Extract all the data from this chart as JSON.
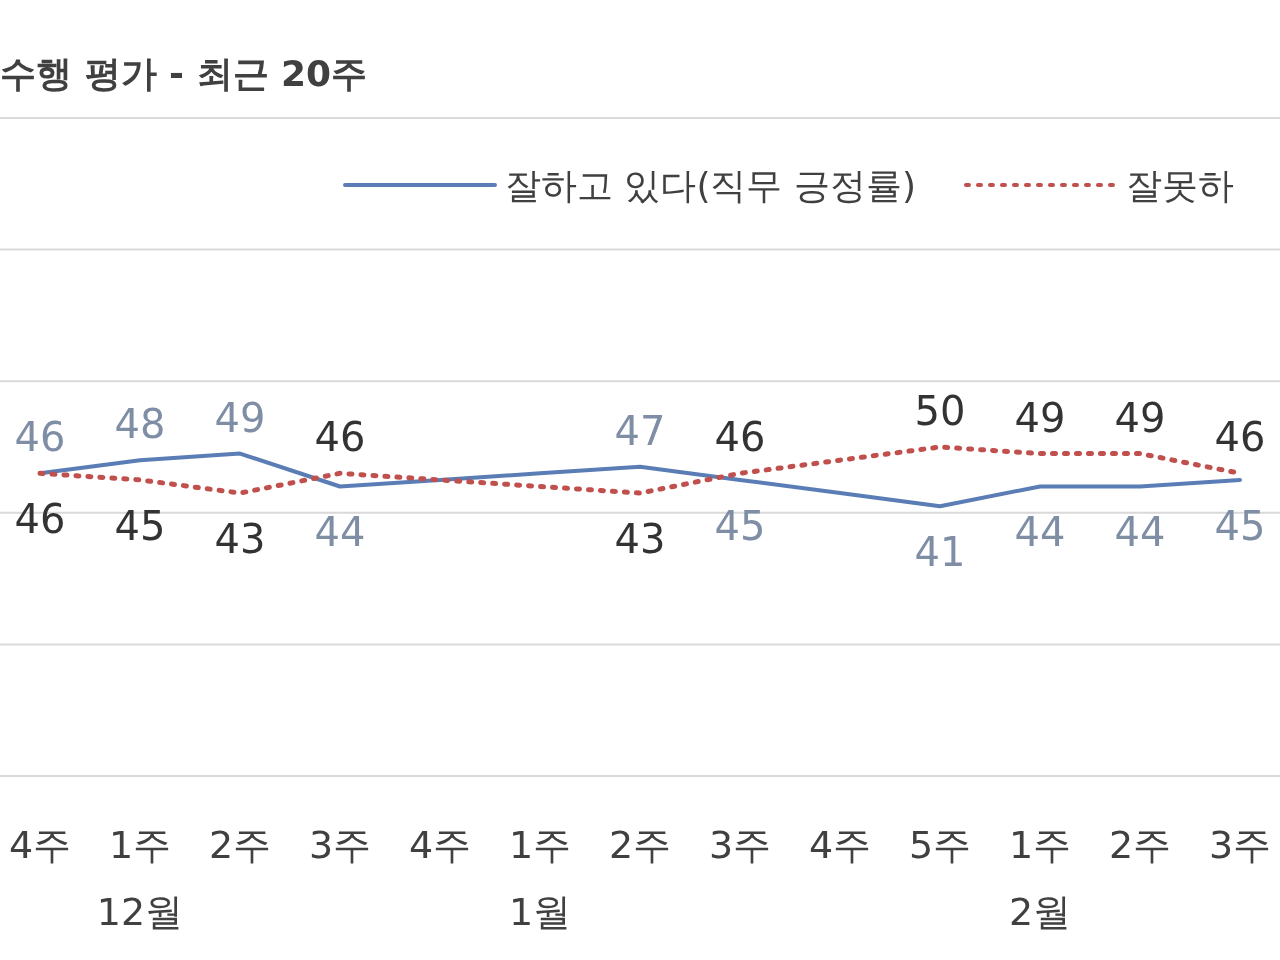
{
  "chart_data": {
    "type": "line",
    "title": "수행 평가 - 최근 20주",
    "categories": [
      "4주",
      "1주",
      "2주",
      "3주",
      "4주",
      "1주",
      "2주",
      "3주",
      "4주",
      "5주",
      "1주",
      "2주",
      "3주"
    ],
    "series": [
      {
        "name": "잘하고 있다(직무 긍정률)",
        "color": "#5b7db5",
        "line_style": "solid",
        "values": [
          46,
          48,
          49,
          44,
          45,
          46,
          47,
          45,
          43,
          41,
          44,
          44,
          45
        ],
        "value_labels": [
          "46",
          "48",
          "49",
          "44",
          null,
          null,
          "47",
          "45",
          null,
          "41",
          "44",
          "44",
          "45"
        ]
      },
      {
        "name": "잘못하",
        "color": "#c0504d",
        "line_style": "dotted",
        "values": [
          46,
          45,
          43,
          46,
          45,
          44,
          43,
          46,
          48,
          50,
          49,
          49,
          46
        ],
        "value_labels": [
          "46",
          "45",
          "43",
          "46",
          null,
          null,
          "43",
          "46",
          null,
          "50",
          "49",
          "49",
          "46"
        ]
      }
    ],
    "ylim": [
      0,
      100
    ],
    "yticks": [
      {
        "value": 0,
        "label": null
      },
      {
        "value": 20,
        "label": null
      },
      {
        "value": 40,
        "label": null
      },
      {
        "value": 60,
        "label": null
      },
      {
        "value": 80,
        "label": null
      },
      {
        "value": 100,
        "label": null
      }
    ],
    "grid": "y",
    "legend": "top",
    "tick_labels": "x",
    "annotations": [
      "12월",
      "1월",
      "2월"
    ]
  }
}
